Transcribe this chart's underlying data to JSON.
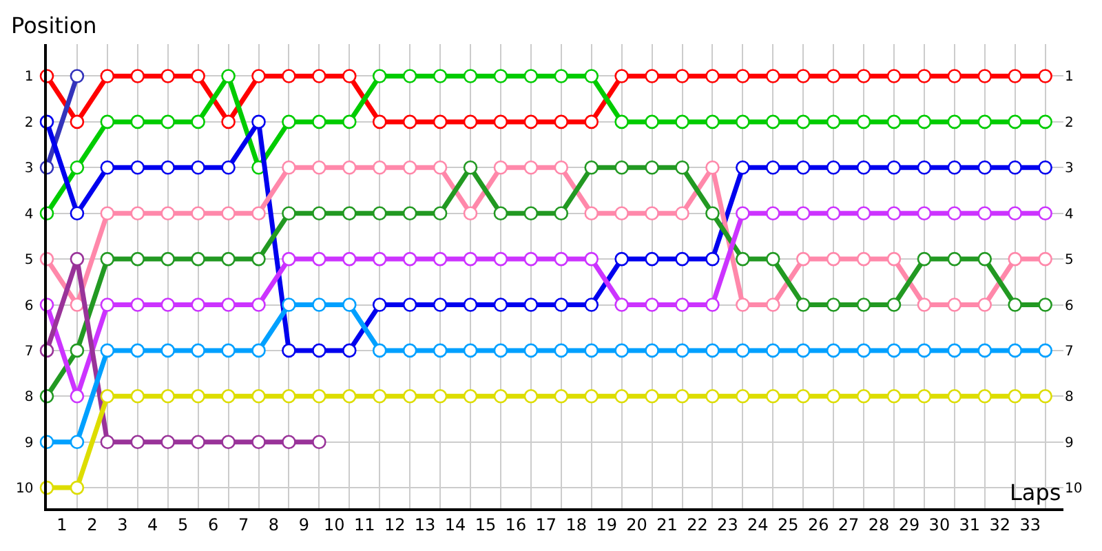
{
  "chart_data": {
    "type": "line",
    "xlabel": "Laps",
    "ylabel": "Position",
    "x": [
      0,
      1,
      2,
      3,
      4,
      5,
      6,
      7,
      8,
      9,
      10,
      11,
      12,
      13,
      14,
      15,
      16,
      17,
      18,
      19,
      20,
      21,
      22,
      23,
      24,
      25,
      26,
      27,
      28,
      29,
      30,
      31,
      32,
      33
    ],
    "xlim": [
      0,
      33.6
    ],
    "xticks": [
      {
        "value": 0,
        "label": null
      },
      {
        "value": 0.5,
        "label": "1"
      },
      {
        "value": 1,
        "label": null
      },
      {
        "value": 1.5,
        "label": "2"
      },
      {
        "value": 2,
        "label": null
      },
      {
        "value": 2.5,
        "label": "3"
      },
      {
        "value": 3,
        "label": null
      },
      {
        "value": 3.5,
        "label": "4"
      },
      {
        "value": 4,
        "label": null
      },
      {
        "value": 4.5,
        "label": "5"
      },
      {
        "value": 5,
        "label": null
      },
      {
        "value": 5.5,
        "label": "6"
      },
      {
        "value": 6,
        "label": null
      },
      {
        "value": 6.5,
        "label": "7"
      },
      {
        "value": 7,
        "label": null
      },
      {
        "value": 7.5,
        "label": "8"
      },
      {
        "value": 8,
        "label": null
      },
      {
        "value": 8.5,
        "label": "9"
      },
      {
        "value": 9,
        "label": null
      },
      {
        "value": 9.5,
        "label": "10"
      },
      {
        "value": 10,
        "label": null
      },
      {
        "value": 10.5,
        "label": "11"
      },
      {
        "value": 11,
        "label": null
      },
      {
        "value": 11.5,
        "label": "12"
      },
      {
        "value": 12,
        "label": null
      },
      {
        "value": 12.5,
        "label": "13"
      },
      {
        "value": 13,
        "label": null
      },
      {
        "value": 13.5,
        "label": "14"
      },
      {
        "value": 14,
        "label": null
      },
      {
        "value": 14.5,
        "label": "15"
      },
      {
        "value": 15,
        "label": null
      },
      {
        "value": 15.5,
        "label": "16"
      },
      {
        "value": 16,
        "label": null
      },
      {
        "value": 16.5,
        "label": "17"
      },
      {
        "value": 17,
        "label": null
      },
      {
        "value": 17.5,
        "label": "18"
      },
      {
        "value": 18,
        "label": null
      },
      {
        "value": 18.5,
        "label": "19"
      },
      {
        "value": 19,
        "label": null
      },
      {
        "value": 19.5,
        "label": "20"
      },
      {
        "value": 20,
        "label": null
      },
      {
        "value": 20.5,
        "label": "21"
      },
      {
        "value": 21,
        "label": null
      },
      {
        "value": 21.5,
        "label": "22"
      },
      {
        "value": 22,
        "label": null
      },
      {
        "value": 22.5,
        "label": "23"
      },
      {
        "value": 23,
        "label": null
      },
      {
        "value": 23.5,
        "label": "24"
      },
      {
        "value": 24,
        "label": null
      },
      {
        "value": 24.5,
        "label": "25"
      },
      {
        "value": 25,
        "label": null
      },
      {
        "value": 25.5,
        "label": "26"
      },
      {
        "value": 26,
        "label": null
      },
      {
        "value": 26.5,
        "label": "27"
      },
      {
        "value": 27,
        "label": null
      },
      {
        "value": 27.5,
        "label": "28"
      },
      {
        "value": 28,
        "label": null
      },
      {
        "value": 28.5,
        "label": "29"
      },
      {
        "value": 29,
        "label": null
      },
      {
        "value": 29.5,
        "label": "30"
      },
      {
        "value": 30,
        "label": null
      },
      {
        "value": 30.5,
        "label": "31"
      },
      {
        "value": 31,
        "label": null
      },
      {
        "value": 31.5,
        "label": "32"
      },
      {
        "value": 32,
        "label": null
      },
      {
        "value": 32.5,
        "label": "33"
      },
      {
        "value": 33,
        "label": null
      }
    ],
    "ylim": [
      10.45,
      0.3
    ],
    "yticks": [
      1,
      2,
      3,
      4,
      5,
      6,
      7,
      8,
      9,
      10
    ],
    "y2lim": [
      10.45,
      0.3
    ],
    "y2ticks": [
      1,
      2,
      3,
      4,
      5,
      6,
      7,
      8,
      9,
      10
    ],
    "grid": true,
    "legend": false,
    "marker": "circle",
    "line_style": "solid",
    "series": [
      {
        "color": "#ff0000",
        "values": [
          1,
          2,
          1,
          1,
          1,
          1,
          2,
          1,
          1,
          1,
          1,
          2,
          2,
          2,
          2,
          2,
          2,
          2,
          2,
          1,
          1,
          1,
          1,
          1,
          1,
          1,
          1,
          1,
          1,
          1,
          1,
          1,
          1,
          1
        ]
      },
      {
        "color": "#00cc00",
        "values": [
          4,
          3,
          2,
          2,
          2,
          2,
          1,
          3,
          2,
          2,
          2,
          1,
          1,
          1,
          1,
          1,
          1,
          1,
          1,
          2,
          2,
          2,
          2,
          2,
          2,
          2,
          2,
          2,
          2,
          2,
          2,
          2,
          2,
          2
        ]
      },
      {
        "color": "#3333bb",
        "values": [
          3,
          1,
          null,
          null,
          null,
          null,
          null,
          null,
          null,
          null,
          null,
          null,
          null,
          null,
          null,
          null,
          null,
          null,
          null,
          null,
          null,
          null,
          null,
          null,
          null,
          null,
          null,
          null,
          null,
          null,
          null,
          null,
          null,
          null
        ]
      },
      {
        "color": "#0000ee",
        "values": [
          2,
          4,
          3,
          3,
          3,
          3,
          3,
          2,
          7,
          7,
          7,
          6,
          6,
          6,
          6,
          6,
          6,
          6,
          6,
          5,
          5,
          5,
          5,
          3,
          3,
          3,
          3,
          3,
          3,
          3,
          3,
          3,
          3,
          3
        ]
      },
      {
        "color": "#ff88aa",
        "values": [
          5,
          6,
          4,
          4,
          4,
          4,
          4,
          4,
          3,
          3,
          3,
          3,
          3,
          3,
          4,
          3,
          3,
          3,
          4,
          4,
          4,
          4,
          3,
          6,
          6,
          5,
          5,
          5,
          5,
          6,
          6,
          6,
          5,
          5
        ]
      },
      {
        "color": "#229922",
        "values": [
          8,
          7,
          5,
          5,
          5,
          5,
          5,
          5,
          4,
          4,
          4,
          4,
          4,
          4,
          3,
          4,
          4,
          4,
          3,
          3,
          3,
          3,
          4,
          5,
          5,
          6,
          6,
          6,
          6,
          5,
          5,
          5,
          6,
          6
        ]
      },
      {
        "color": "#cc33ff",
        "values": [
          6,
          8,
          6,
          6,
          6,
          6,
          6,
          6,
          5,
          5,
          5,
          5,
          5,
          5,
          5,
          5,
          5,
          5,
          5,
          6,
          6,
          6,
          6,
          4,
          4,
          4,
          4,
          4,
          4,
          4,
          4,
          4,
          4,
          4
        ]
      },
      {
        "color": "#993399",
        "values": [
          7,
          5,
          9,
          9,
          9,
          9,
          9,
          9,
          9,
          9,
          null,
          null,
          null,
          null,
          null,
          null,
          null,
          null,
          null,
          null,
          null,
          null,
          null,
          null,
          null,
          null,
          null,
          null,
          null,
          null,
          null,
          null,
          null,
          null
        ]
      },
      {
        "color": "#00a0ff",
        "values": [
          9,
          9,
          7,
          7,
          7,
          7,
          7,
          7,
          6,
          6,
          6,
          7,
          7,
          7,
          7,
          7,
          7,
          7,
          7,
          7,
          7,
          7,
          7,
          7,
          7,
          7,
          7,
          7,
          7,
          7,
          7,
          7,
          7,
          7
        ]
      },
      {
        "color": "#dddd00",
        "values": [
          10,
          10,
          8,
          8,
          8,
          8,
          8,
          8,
          8,
          8,
          8,
          8,
          8,
          8,
          8,
          8,
          8,
          8,
          8,
          8,
          8,
          8,
          8,
          8,
          8,
          8,
          8,
          8,
          8,
          8,
          8,
          8,
          8,
          8
        ]
      }
    ]
  }
}
